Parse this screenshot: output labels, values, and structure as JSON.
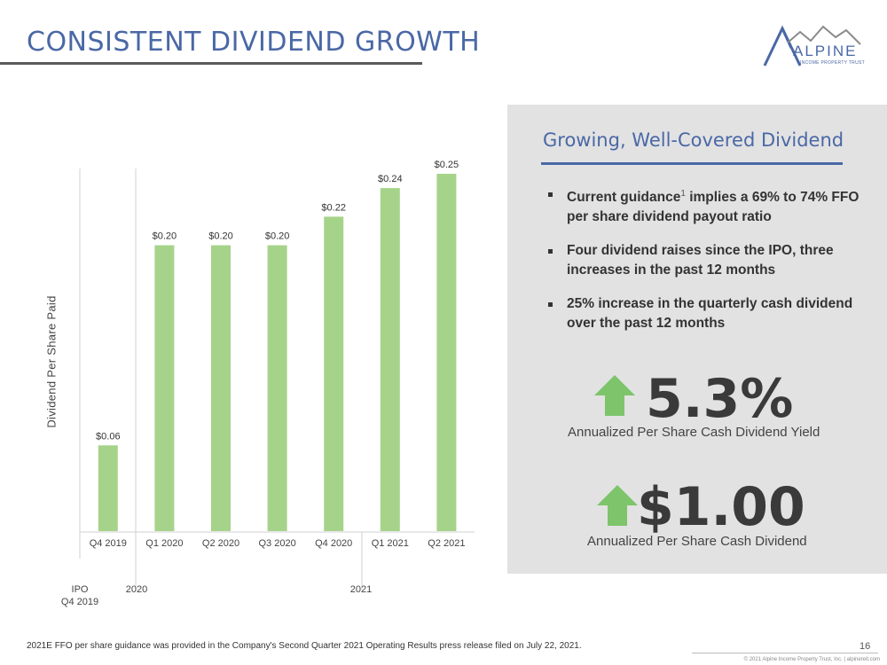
{
  "header": {
    "title": "CONSISTENT DIVIDEND GROWTH"
  },
  "logo": {
    "word": "ALPINE",
    "subtitle": "INCOME PROPERTY TRUST",
    "color": "#4a68a6"
  },
  "chart_data": {
    "type": "bar",
    "categories": [
      "Q4 2019",
      "Q1 2020",
      "Q2 2020",
      "Q3 2020",
      "Q4 2020",
      "Q1 2021",
      "Q2 2021"
    ],
    "values": [
      0.06,
      0.2,
      0.2,
      0.2,
      0.22,
      0.24,
      0.25
    ],
    "data_labels": [
      "$0.06",
      "$0.20",
      "$0.20",
      "$0.20",
      "$0.22",
      "$0.24",
      "$0.25"
    ],
    "ylabel": "Dividend Per Share Paid",
    "xlabel": "",
    "ylim": [
      0,
      0.25
    ],
    "bar_color": "#a6d38a",
    "grid": false,
    "timeline_labels": [
      "IPO",
      "Q4 2019",
      "2020",
      "2021"
    ]
  },
  "panel": {
    "heading": "Growing, Well-Covered Dividend",
    "bullets": [
      {
        "pre": "Current guidance",
        "sup": "1",
        "post": " implies a 69% to 74% FFO per share dividend payout ratio"
      },
      {
        "text": "Four dividend raises since the IPO, three increases in the past 12 months"
      },
      {
        "text": "25% increase in the quarterly cash dividend over the past 12 months"
      }
    ],
    "stat1": {
      "value": "5.3%",
      "caption": "Annualized Per Share Cash Dividend Yield"
    },
    "stat2": {
      "value": "$1.00",
      "caption": "Annualized Per Share Cash Dividend"
    },
    "arrow_color": "#7dc46a",
    "background": "#e2e2e2"
  },
  "footer": {
    "footnote": "2021E FFO per share guidance was provided in the Company's Second Quarter 2021 Operating Results press release filed on July 22, 2021.",
    "page": "16",
    "copyright": "© 2021 Alpine Income Property Trust, Inc.  |  alpinereit.com"
  }
}
